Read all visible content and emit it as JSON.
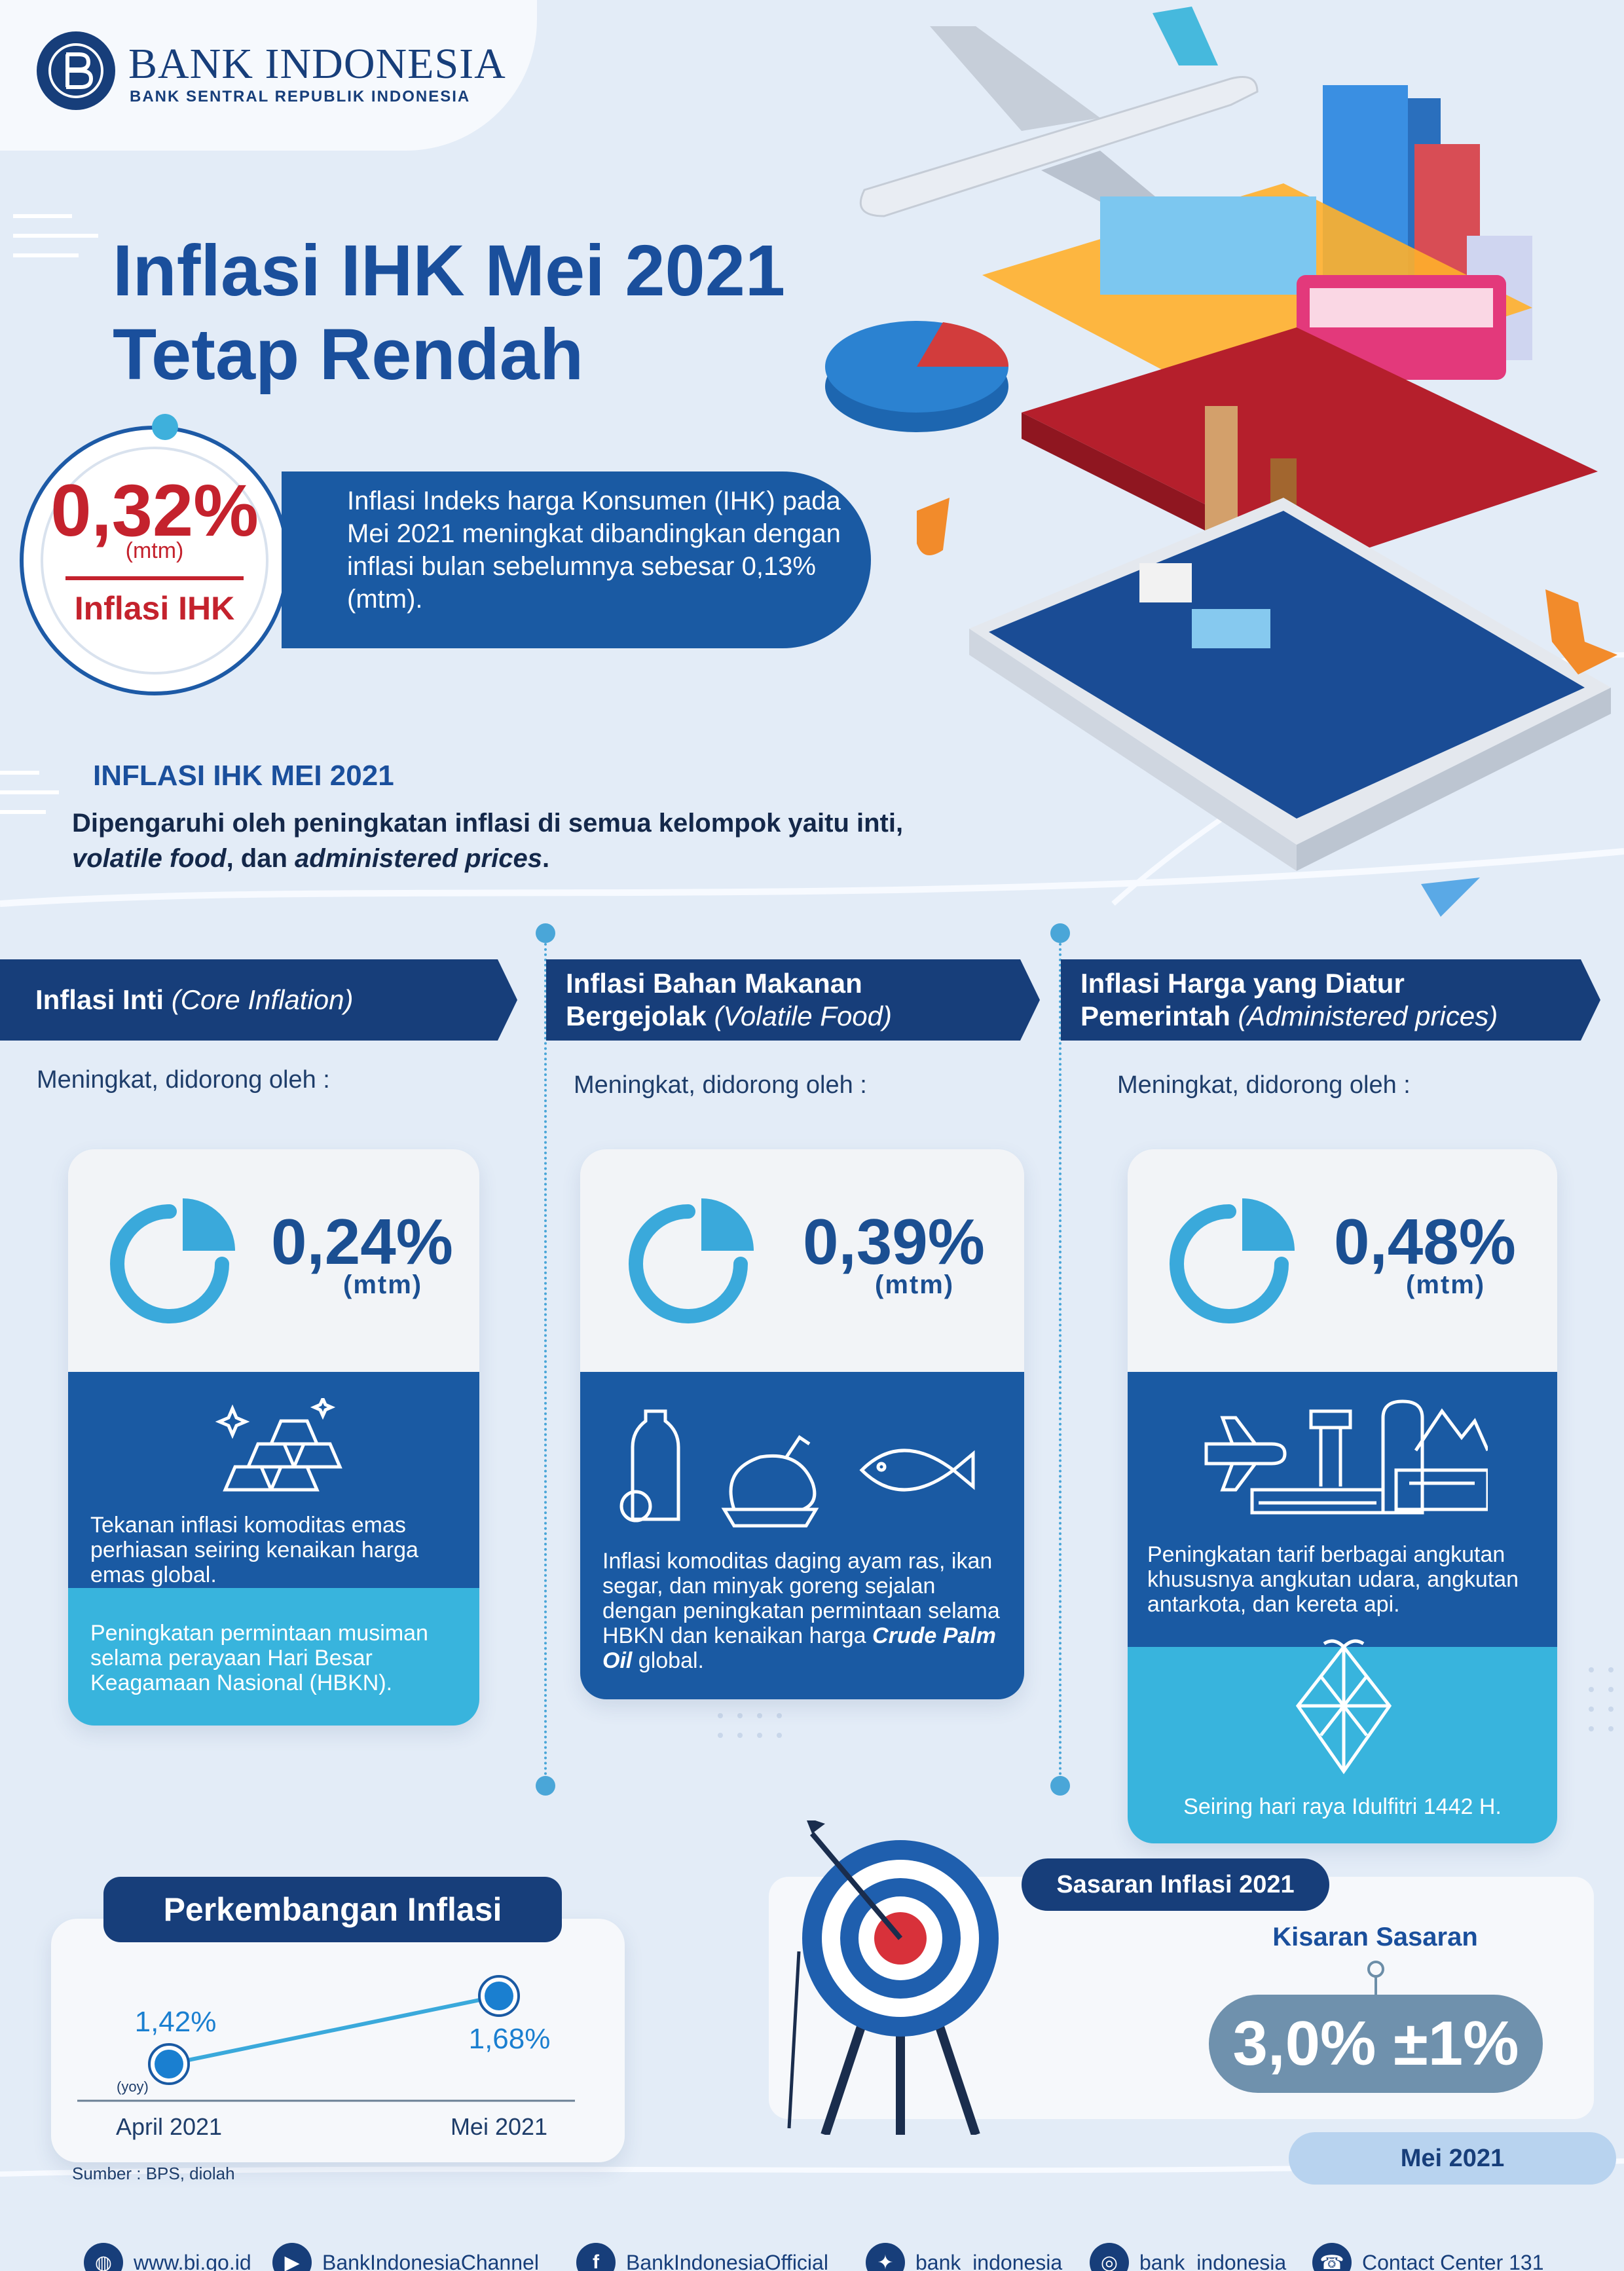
{
  "header": {
    "org_name": "BANK INDONESIA",
    "org_tagline": "BANK SENTRAL REPUBLIK INDONESIA",
    "title_line1": "Inflasi IHK Mei 2021",
    "title_line2": "Tetap Rendah"
  },
  "headline": {
    "value": "0,32%",
    "unit": "(mtm)",
    "label": "Inflasi IHK",
    "description": "Inflasi Indeks harga Konsumen (IHK) pada Mei 2021 meningkat dibandingkan dengan inflasi bulan sebelumnya sebesar 0,13% (mtm)."
  },
  "summary": {
    "heading": "INFLASI IHK MEI 2021",
    "text_prefix": "Dipengaruhi oleh peningkatan inflasi di semua kelompok yaitu inti,",
    "text_italic1": "volatile food",
    "text_mid": ", dan ",
    "text_italic2": "administered prices",
    "text_end": "."
  },
  "groups": [
    {
      "title": "Inflasi Inti",
      "title_italic": "(Core Inflation)",
      "driver": "Meningkat, didorong oleh :",
      "value": "0,24%",
      "unit": "(mtm)",
      "factor1": "Tekanan inflasi komoditas emas perhiasan seiring kenaikan harga emas global.",
      "factor2": "Peningkatan permintaan musiman selama perayaan Hari Besar Keagamaan Nasional (HBKN)."
    },
    {
      "title_line1": "Inflasi Bahan Makanan",
      "title_line2": "Bergejolak",
      "title_italic": "(Volatile Food)",
      "driver": "Meningkat, didorong oleh :",
      "value": "0,39%",
      "unit": "(mtm)",
      "factor1_prefix": "Inflasi komoditas daging ayam ras, ikan segar, dan minyak goreng sejalan dengan peningkatan permintaan selama HBKN dan kenaikan harga",
      "factor1_italic": "Crude Palm Oil",
      "factor1_suffix": "global."
    },
    {
      "title_line1": "Inflasi Harga yang Diatur",
      "title_line2": "Pemerintah",
      "title_italic": "(Administered prices)",
      "driver": "Meningkat, didorong oleh :",
      "value": "0,48%",
      "unit": "(mtm)",
      "factor1": "Peningkatan tarif berbagai angkutan khususnya angkutan udara, angkutan antarkota, dan kereta api.",
      "factor2": "Seiring hari raya Idulfitri 1442 H."
    }
  ],
  "development": {
    "title": "Perkembangan Inflasi",
    "unit_note": "(yoy)",
    "source": "Sumber : BPS, diolah"
  },
  "chart_data": {
    "type": "line",
    "categories": [
      "April 2021",
      "Mei 2021"
    ],
    "values": [
      1.42,
      1.68
    ],
    "value_labels": [
      "1,42%",
      "1,68%"
    ],
    "ylabel": "(yoy)"
  },
  "target": {
    "badge": "Sasaran Inflasi 2021",
    "range_label": "Kisaran Sasaran",
    "range_value": "3,0% ±1%",
    "period": "Mei 2021"
  },
  "footer": {
    "website": "www.bi.go.id",
    "youtube": "BankIndonesiaChannel",
    "facebook": "BankIndonesiaOfficial",
    "twitter": "bank_indonesia",
    "instagram": "bank_indonesia",
    "contact": "Contact Center 131"
  },
  "colors": {
    "navy": "#173e7a",
    "blue": "#1a5aa3",
    "light_blue": "#38b4dd",
    "red": "#c8242f",
    "background": "#e3ecf7"
  }
}
